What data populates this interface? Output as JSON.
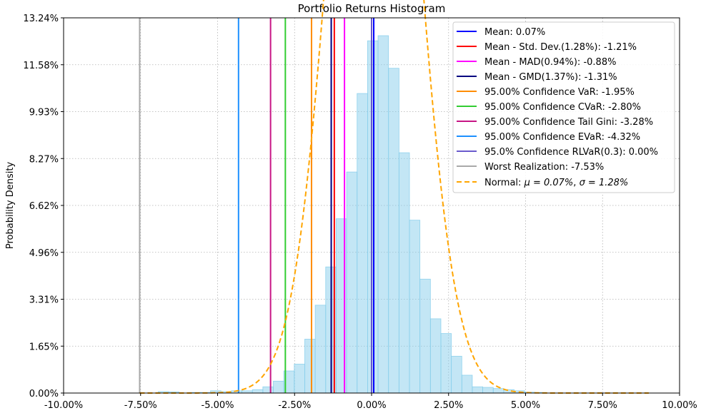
{
  "chart_data": {
    "type": "histogram",
    "title": "Portfolio Returns Histogram",
    "xlabel": "",
    "ylabel": "Probability Density",
    "xlim": [
      -10.0,
      10.0
    ],
    "ylim": [
      0.0,
      13.24
    ],
    "x_ticks": [
      "-10.00%",
      "-7.50%",
      "-5.00%",
      "-2.50%",
      "0.00%",
      "2.50%",
      "5.00%",
      "7.50%",
      "10.00%"
    ],
    "y_ticks": [
      "0.00%",
      "1.65%",
      "3.31%",
      "4.96%",
      "6.62%",
      "8.27%",
      "9.93%",
      "11.58%",
      "13.24%"
    ],
    "grid": true,
    "legend_position": "top-right",
    "histogram": {
      "color": "#87ceeb",
      "bin_width": 0.34,
      "bins": [
        {
          "x": -6.76,
          "y": 0.05
        },
        {
          "x": -6.42,
          "y": 0.04
        },
        {
          "x": -5.74,
          "y": 0.02
        },
        {
          "x": -5.4,
          "y": 0.02
        },
        {
          "x": -5.06,
          "y": 0.08
        },
        {
          "x": -4.72,
          "y": 0.05
        },
        {
          "x": -4.38,
          "y": 0.08
        },
        {
          "x": -4.04,
          "y": 0.08
        },
        {
          "x": -3.7,
          "y": 0.12
        },
        {
          "x": -3.36,
          "y": 0.22
        },
        {
          "x": -3.02,
          "y": 0.42
        },
        {
          "x": -2.68,
          "y": 0.78
        },
        {
          "x": -2.34,
          "y": 1.02
        },
        {
          "x": -2.0,
          "y": 1.9
        },
        {
          "x": -1.66,
          "y": 3.1
        },
        {
          "x": -1.32,
          "y": 4.45
        },
        {
          "x": -0.98,
          "y": 6.15
        },
        {
          "x": -0.64,
          "y": 7.8
        },
        {
          "x": -0.3,
          "y": 10.57
        },
        {
          "x": 0.04,
          "y": 12.43
        },
        {
          "x": 0.38,
          "y": 12.61
        },
        {
          "x": 0.72,
          "y": 11.46
        },
        {
          "x": 1.06,
          "y": 8.48
        },
        {
          "x": 1.4,
          "y": 6.1
        },
        {
          "x": 1.74,
          "y": 4.02
        },
        {
          "x": 2.08,
          "y": 2.62
        },
        {
          "x": 2.42,
          "y": 2.1
        },
        {
          "x": 2.76,
          "y": 1.3
        },
        {
          "x": 3.1,
          "y": 0.63
        },
        {
          "x": 3.44,
          "y": 0.22
        },
        {
          "x": 3.78,
          "y": 0.2
        },
        {
          "x": 4.12,
          "y": 0.16
        },
        {
          "x": 4.46,
          "y": 0.12
        },
        {
          "x": 4.8,
          "y": 0.08
        },
        {
          "x": 5.14,
          "y": 0.03
        },
        {
          "x": 5.48,
          "y": 0.02
        }
      ]
    },
    "normal_curve": {
      "mu": 0.07,
      "sigma": 1.28,
      "x_range": [
        -7.53,
        9.0
      ],
      "color": "#ffa500"
    },
    "vlines": [
      {
        "label": "Mean: 0.07%",
        "x": 0.07,
        "color": "#0000ff"
      },
      {
        "label": "Mean - Std. Dev.(1.28%): -1.21%",
        "x": -1.21,
        "color": "#ff0000"
      },
      {
        "label": "Mean - MAD(0.94%): -0.88%",
        "x": -0.88,
        "color": "#ff00ff"
      },
      {
        "label": "Mean - GMD(1.37%): -1.31%",
        "x": -1.31,
        "color": "#000080"
      },
      {
        "label": "95.00% Confidence VaR: -1.95%",
        "x": -1.95,
        "color": "#ff8c00"
      },
      {
        "label": "95.00% Confidence CVaR: -2.80%",
        "x": -2.8,
        "color": "#32cd32"
      },
      {
        "label": "95.00% Confidence Tail Gini: -3.28%",
        "x": -3.28,
        "color": "#c71585"
      },
      {
        "label": "95.00% Confidence EVaR: -4.32%",
        "x": -4.32,
        "color": "#1e90ff"
      },
      {
        "label": "95.0% Confidence RLVaR(0.3): 0.00%",
        "x": 0.0,
        "color": "#6a5acd"
      },
      {
        "label": "Worst Realization: -7.53%",
        "x": -7.53,
        "color": "#a9a9a9"
      }
    ],
    "normal_legend": {
      "prefix": "Normal: ",
      "mu_text": "μ = 0.07%",
      "sigma_text": "σ = 1.28%",
      "separator": ", "
    }
  }
}
